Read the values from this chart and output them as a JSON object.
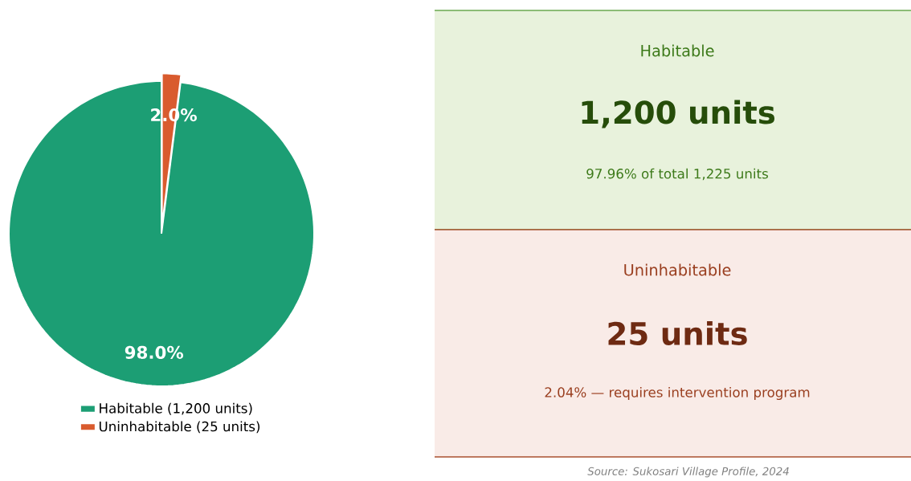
{
  "chart_data": [
    {
      "type": "pie",
      "categories": [
        "Habitable (1,200 units)",
        "Uninhabitable (25 units)"
      ],
      "values": [
        98.0,
        2.0
      ],
      "colors": [
        "#1c9e74",
        "#d95b2e"
      ],
      "value_labels": [
        "98.0%",
        "2.0%"
      ],
      "legend": "bottom"
    },
    {
      "type": "other",
      "annotations": [
        "Habitable",
        "1,200 units",
        "97.96% of total 1,225 units",
        "Uninhabitable",
        "25 units",
        "2.04% — requires intervention program",
        "*Source: Sukosari Village Profile, 2024*"
      ]
    }
  ]
}
